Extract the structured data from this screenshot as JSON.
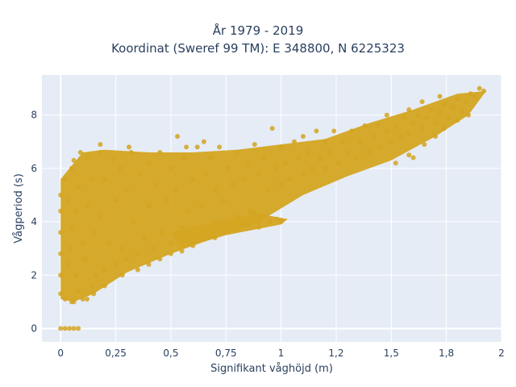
{
  "chart_data": {
    "type": "scatter",
    "title": "År 1979 - 2019",
    "subtitle": "Koordinat (Sweref 99 TM): E 348800, N 6225323",
    "xlabel": "Signifikant våghöjd (m)",
    "ylabel": "Vågperiod (s)",
    "xlim": [
      -0.085,
      2.0
    ],
    "ylim": [
      -0.5,
      9.5
    ],
    "x_ticks": [
      0,
      0.25,
      0.5,
      0.75,
      1,
      1.25,
      1.5,
      1.75,
      2
    ],
    "x_tick_labels": [
      "0",
      "0,25",
      "0,5",
      "0,75",
      "1",
      "1,2",
      "1,5",
      "1,8",
      "2"
    ],
    "y_ticks": [
      0,
      2,
      4,
      6,
      8
    ],
    "y_tick_labels": [
      "0",
      "2",
      "4",
      "6",
      "8"
    ],
    "grid": true,
    "marker_color": "#D4A521",
    "series": [
      {
        "points": [
          [
            0.0,
            0.0
          ],
          [
            0.02,
            0.0
          ],
          [
            0.04,
            0.0
          ],
          [
            0.06,
            0.0
          ],
          [
            0.08,
            0.0
          ],
          [
            0.0,
            1.3
          ],
          [
            0.0,
            2.0
          ],
          [
            0.0,
            2.8
          ],
          [
            0.0,
            3.6
          ],
          [
            0.0,
            4.4
          ],
          [
            0.0,
            5.0
          ],
          [
            0.02,
            1.1
          ],
          [
            0.02,
            5.6
          ],
          [
            0.03,
            2.4
          ],
          [
            0.03,
            4.8
          ],
          [
            0.04,
            3.0
          ],
          [
            0.05,
            1.0
          ],
          [
            0.05,
            3.8
          ],
          [
            0.05,
            6.0
          ],
          [
            0.06,
            6.3
          ],
          [
            0.07,
            2.0
          ],
          [
            0.07,
            4.4
          ],
          [
            0.08,
            1.4
          ],
          [
            0.08,
            5.3
          ],
          [
            0.09,
            6.6
          ],
          [
            0.1,
            1.1
          ],
          [
            0.1,
            3.2
          ],
          [
            0.11,
            2.6
          ],
          [
            0.12,
            4.6
          ],
          [
            0.12,
            6.4
          ],
          [
            0.14,
            1.6
          ],
          [
            0.14,
            5.6
          ],
          [
            0.15,
            3.6
          ],
          [
            0.16,
            2.0
          ],
          [
            0.18,
            6.6
          ],
          [
            0.18,
            4.2
          ],
          [
            0.2,
            2.2
          ],
          [
            0.2,
            5.6
          ],
          [
            0.22,
            3.2
          ],
          [
            0.24,
            6.4
          ],
          [
            0.25,
            2.4
          ],
          [
            0.25,
            4.8
          ],
          [
            0.27,
            6.0
          ],
          [
            0.28,
            3.0
          ],
          [
            0.3,
            2.6
          ],
          [
            0.3,
            5.2
          ],
          [
            0.32,
            6.6
          ],
          [
            0.33,
            4.0
          ],
          [
            0.35,
            2.8
          ],
          [
            0.36,
            5.8
          ],
          [
            0.38,
            3.4
          ],
          [
            0.4,
            6.2
          ],
          [
            0.4,
            4.6
          ],
          [
            0.42,
            3.0
          ],
          [
            0.43,
            5.4
          ],
          [
            0.45,
            6.6
          ],
          [
            0.46,
            3.6
          ],
          [
            0.48,
            4.8
          ],
          [
            0.5,
            3.2
          ],
          [
            0.5,
            6.0
          ],
          [
            0.52,
            5.2
          ],
          [
            0.53,
            7.2
          ],
          [
            0.55,
            3.8
          ],
          [
            0.56,
            6.4
          ],
          [
            0.58,
            4.4
          ],
          [
            0.6,
            5.6
          ],
          [
            0.6,
            3.4
          ],
          [
            0.62,
            6.8
          ],
          [
            0.64,
            4.6
          ],
          [
            0.65,
            3.6
          ],
          [
            0.66,
            5.8
          ],
          [
            0.68,
            6.4
          ],
          [
            0.7,
            4.0
          ],
          [
            0.7,
            5.2
          ],
          [
            0.72,
            6.8
          ],
          [
            0.74,
            4.8
          ],
          [
            0.75,
            3.8
          ],
          [
            0.76,
            6.0
          ],
          [
            0.78,
            5.4
          ],
          [
            0.8,
            4.2
          ],
          [
            0.8,
            6.6
          ],
          [
            0.82,
            3.9
          ],
          [
            0.83,
            5.6
          ],
          [
            0.85,
            6.2
          ],
          [
            0.86,
            4.4
          ],
          [
            0.88,
            6.9
          ],
          [
            0.9,
            4.0
          ],
          [
            0.9,
            5.8
          ],
          [
            0.92,
            6.4
          ],
          [
            0.94,
            5.2
          ],
          [
            0.96,
            7.5
          ],
          [
            0.98,
            6.0
          ],
          [
            1.0,
            5.4
          ],
          [
            1.0,
            6.8
          ],
          [
            1.02,
            6.2
          ],
          [
            1.04,
            5.6
          ],
          [
            1.06,
            7.0
          ],
          [
            1.08,
            6.4
          ],
          [
            1.1,
            5.8
          ],
          [
            1.1,
            7.2
          ],
          [
            1.12,
            6.6
          ],
          [
            1.14,
            6.0
          ],
          [
            1.16,
            7.4
          ],
          [
            1.18,
            6.4
          ],
          [
            1.2,
            6.0
          ],
          [
            1.2,
            7.0
          ],
          [
            1.22,
            6.6
          ],
          [
            1.24,
            7.4
          ],
          [
            1.26,
            6.2
          ],
          [
            1.28,
            7.0
          ],
          [
            1.3,
            6.6
          ],
          [
            1.32,
            7.4
          ],
          [
            1.34,
            6.4
          ],
          [
            1.36,
            7.0
          ],
          [
            1.38,
            7.6
          ],
          [
            1.4,
            6.6
          ],
          [
            1.42,
            7.2
          ],
          [
            1.44,
            7.6
          ],
          [
            1.45,
            6.8
          ],
          [
            1.48,
            7.4
          ],
          [
            1.5,
            7.0
          ],
          [
            1.52,
            7.6
          ],
          [
            1.54,
            7.2
          ],
          [
            1.56,
            7.9
          ],
          [
            1.58,
            7.3
          ],
          [
            1.6,
            7.7
          ],
          [
            1.62,
            8.0
          ],
          [
            1.64,
            7.5
          ],
          [
            1.66,
            7.9
          ],
          [
            1.68,
            8.2
          ],
          [
            1.7,
            7.7
          ],
          [
            1.72,
            8.1
          ],
          [
            1.74,
            8.4
          ],
          [
            1.76,
            7.9
          ],
          [
            1.78,
            8.3
          ],
          [
            1.8,
            8.6
          ],
          [
            1.82,
            8.1
          ],
          [
            1.84,
            8.5
          ],
          [
            1.86,
            8.8
          ],
          [
            1.88,
            8.7
          ],
          [
            1.9,
            9.0
          ],
          [
            1.92,
            8.9
          ],
          [
            1.52,
            6.2
          ],
          [
            1.58,
            6.5
          ],
          [
            1.6,
            6.4
          ],
          [
            1.65,
            6.9
          ],
          [
            1.7,
            7.2
          ],
          [
            1.74,
            7.5
          ],
          [
            1.8,
            7.8
          ],
          [
            1.85,
            8.0
          ],
          [
            1.48,
            8.0
          ],
          [
            1.64,
            8.5
          ],
          [
            1.58,
            8.2
          ],
          [
            1.72,
            8.7
          ],
          [
            0.65,
            7.0
          ],
          [
            0.57,
            6.8
          ],
          [
            0.31,
            6.8
          ],
          [
            0.18,
            6.9
          ],
          [
            0.6,
            3.1
          ],
          [
            0.55,
            2.9
          ],
          [
            0.7,
            3.4
          ],
          [
            0.5,
            2.8
          ],
          [
            0.45,
            2.6
          ],
          [
            0.4,
            2.4
          ],
          [
            0.35,
            2.2
          ],
          [
            0.28,
            2.0
          ],
          [
            0.2,
            1.6
          ],
          [
            0.15,
            1.3
          ],
          [
            0.12,
            1.1
          ],
          [
            0.06,
            1.0
          ],
          [
            0.8,
            3.7
          ],
          [
            0.85,
            3.9
          ],
          [
            0.9,
            3.8
          ],
          [
            0.95,
            4.0
          ],
          [
            1.0,
            4.0
          ],
          [
            0.92,
            4.2
          ],
          [
            0.88,
            4.3
          ],
          [
            0.98,
            4.1
          ]
        ]
      }
    ]
  }
}
